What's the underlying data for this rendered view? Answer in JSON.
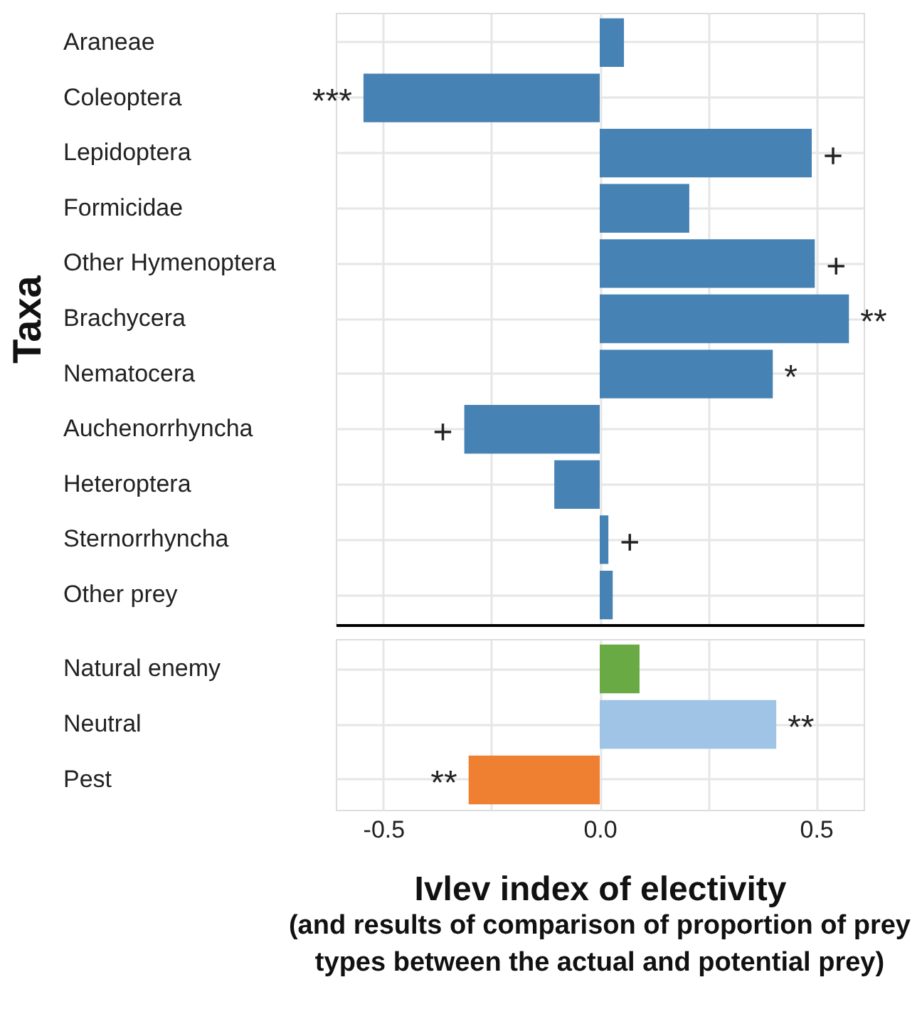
{
  "chart_data": [
    {
      "type": "bar",
      "orientation": "horizontal",
      "ylabel": "Taxa",
      "categories": [
        "Araneae",
        "Coleoptera",
        "Lepidoptera",
        "Formicidae",
        "Other Hymenoptera",
        "Brachycera",
        "Nematocera",
        "Auchenorrhyncha",
        "Heteroptera",
        "Sternorrhyncha",
        "Other prey"
      ],
      "values": [
        0.056,
        -0.546,
        0.49,
        0.207,
        0.497,
        0.576,
        0.4,
        -0.313,
        -0.105,
        0.02,
        0.03
      ],
      "color": "#4682b4",
      "xlim": [
        -0.61,
        0.61
      ],
      "xticks": [
        -0.5,
        -0.25,
        0,
        0.25,
        0.5
      ],
      "tick_labels": "y",
      "grid": true,
      "annotations": [
        {
          "text": "***",
          "x": -0.546,
          "y": "Coleoptera"
        },
        {
          "text": "+",
          "x": 0.49,
          "y": "Lepidoptera"
        },
        {
          "text": "+",
          "x": 0.497,
          "y": "Other Hymenoptera"
        },
        {
          "text": "**",
          "x": 0.576,
          "y": "Brachycera"
        },
        {
          "text": "*",
          "x": 0.4,
          "y": "Nematocera"
        },
        {
          "text": "+",
          "x": -0.313,
          "y": "Auchenorrhyncha"
        },
        {
          "text": "+",
          "x": 0.02,
          "y": "Sternorrhyncha"
        }
      ]
    },
    {
      "type": "bar",
      "orientation": "horizontal",
      "xlabel": "Ivlev index of electivity",
      "categories": [
        "Natural enemy",
        "Neutral",
        "Pest"
      ],
      "values": [
        0.092,
        0.408,
        -0.303
      ],
      "colors": [
        "#6aaa45",
        "#a0c4e6",
        "#ef7f31"
      ],
      "xlim": [
        -0.61,
        0.61
      ],
      "xticks": [
        {
          "value": -0.5,
          "label": "-0.5"
        },
        {
          "value": -0.25,
          "label": null
        },
        {
          "value": 0,
          "label": "0.0"
        },
        {
          "value": 0.25,
          "label": null
        },
        {
          "value": 0.5,
          "label": "0.5"
        }
      ],
      "grid": true,
      "annotations": [
        {
          "text": "**",
          "x": 0.408,
          "y": "Neutral"
        },
        {
          "text": "**",
          "x": -0.303,
          "y": "Pest"
        },
        "(and results of comparison of proportion of prey types between the actual and potential prey)"
      ]
    }
  ]
}
